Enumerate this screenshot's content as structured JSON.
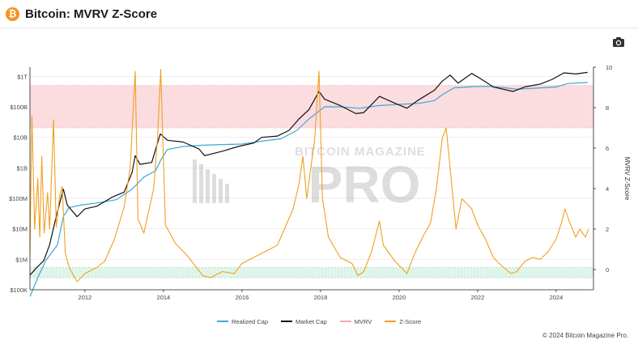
{
  "header": {
    "logo_glyph": "₿",
    "title": "Bitcoin: MVRV Z-Score"
  },
  "toolbar": {
    "camera_icon": "camera-icon"
  },
  "watermark": {
    "top": "BITCOIN MAGAZINE",
    "bottom": "PRO"
  },
  "legend": [
    {
      "label": "Realized Cap",
      "color": "#3ba7d6"
    },
    {
      "label": "Market Cap",
      "color": "#111111"
    },
    {
      "label": "MVRV",
      "color": "#f4a7b0"
    },
    {
      "label": "Z-Score",
      "color": "#f0a020"
    }
  ],
  "footer": {
    "copyright": "© 2024 Bitcoin Magazine Pro."
  },
  "chart_data": {
    "type": "line",
    "title": "Bitcoin: MVRV Z-Score",
    "x_range": [
      2010.6,
      2024.95
    ],
    "x_ticks": [
      "2012",
      "2014",
      "2016",
      "2018",
      "2020",
      "2022",
      "2024"
    ],
    "x_tick_values": [
      2012,
      2014,
      2016,
      2018,
      2020,
      2022,
      2024
    ],
    "y_left": {
      "scale": "log",
      "unit": "USD",
      "range": [
        100000,
        2000000000000
      ],
      "ticks": [
        "$100K",
        "$1M",
        "$10M",
        "$100M",
        "$1B",
        "$10B",
        "$100B",
        "$1T"
      ],
      "tick_values": [
        100000.0,
        1000000.0,
        10000000.0,
        100000000.0,
        1000000000.0,
        10000000000.0,
        100000000000.0,
        1000000000000.0
      ]
    },
    "y_right": {
      "label": "MVRV Z-Score",
      "range": [
        -1,
        10
      ],
      "ticks": [
        "0",
        "2",
        "4",
        "6",
        "8",
        "10"
      ],
      "tick_values": [
        0,
        2,
        4,
        6,
        8,
        10
      ]
    },
    "bands": [
      {
        "axis": "right",
        "from": 7,
        "to": 9.1,
        "color": "#fbdcdf",
        "meaning": "overvalued zone"
      },
      {
        "axis": "right",
        "from": -0.4,
        "to": 0.1,
        "color": "#dff5e9",
        "meaning": "undervalued zone"
      }
    ],
    "series": [
      {
        "name": "Realized Cap",
        "axis": "left",
        "color": "#3ba7d6",
        "points": [
          [
            2010.6,
            60000
          ],
          [
            2010.8,
            250000
          ],
          [
            2011.0,
            900000
          ],
          [
            2011.3,
            3000000
          ],
          [
            2011.45,
            25000000
          ],
          [
            2011.6,
            50000000
          ],
          [
            2011.9,
            60000000
          ],
          [
            2012.3,
            70000000
          ],
          [
            2012.8,
            90000000
          ],
          [
            2013.2,
            200000000
          ],
          [
            2013.5,
            500000000
          ],
          [
            2013.8,
            800000000
          ],
          [
            2013.95,
            2000000000
          ],
          [
            2014.1,
            4000000000
          ],
          [
            2014.5,
            5000000000
          ],
          [
            2015.0,
            5500000000
          ],
          [
            2015.5,
            5800000000
          ],
          [
            2016.0,
            6000000000
          ],
          [
            2016.5,
            7500000000
          ],
          [
            2017.0,
            9000000000
          ],
          [
            2017.4,
            17000000000
          ],
          [
            2017.7,
            40000000000
          ],
          [
            2017.95,
            70000000000
          ],
          [
            2018.1,
            100000000000
          ],
          [
            2018.5,
            100000000000
          ],
          [
            2019.0,
            90000000000
          ],
          [
            2019.5,
            110000000000
          ],
          [
            2020.0,
            120000000000
          ],
          [
            2020.5,
            130000000000
          ],
          [
            2020.9,
            160000000000
          ],
          [
            2021.1,
            250000000000
          ],
          [
            2021.4,
            420000000000
          ],
          [
            2021.9,
            460000000000
          ],
          [
            2022.3,
            470000000000
          ],
          [
            2022.7,
            420000000000
          ],
          [
            2023.0,
            380000000000
          ],
          [
            2023.5,
            410000000000
          ],
          [
            2024.0,
            450000000000
          ],
          [
            2024.3,
            580000000000
          ],
          [
            2024.8,
            630000000000
          ]
        ]
      },
      {
        "name": "Market Cap",
        "axis": "left",
        "color": "#111111",
        "points": [
          [
            2010.6,
            300000
          ],
          [
            2010.75,
            500000
          ],
          [
            2010.95,
            900000
          ],
          [
            2011.1,
            3000000
          ],
          [
            2011.25,
            20000000
          ],
          [
            2011.45,
            200000000
          ],
          [
            2011.55,
            60000000
          ],
          [
            2011.8,
            25000000
          ],
          [
            2012.0,
            45000000
          ],
          [
            2012.3,
            55000000
          ],
          [
            2012.7,
            110000000
          ],
          [
            2013.0,
            160000000
          ],
          [
            2013.2,
            700000000
          ],
          [
            2013.28,
            2500000000
          ],
          [
            2013.4,
            1300000000
          ],
          [
            2013.7,
            1500000000
          ],
          [
            2013.92,
            13000000000
          ],
          [
            2014.1,
            8000000000
          ],
          [
            2014.5,
            7000000000
          ],
          [
            2014.9,
            4200000000
          ],
          [
            2015.05,
            2500000000
          ],
          [
            2015.5,
            3500000000
          ],
          [
            2015.9,
            5000000000
          ],
          [
            2016.3,
            6500000000
          ],
          [
            2016.5,
            10000000000
          ],
          [
            2016.9,
            11000000000
          ],
          [
            2017.2,
            17000000000
          ],
          [
            2017.45,
            40000000000
          ],
          [
            2017.7,
            80000000000
          ],
          [
            2017.96,
            320000000000
          ],
          [
            2018.1,
            180000000000
          ],
          [
            2018.5,
            110000000000
          ],
          [
            2018.9,
            60000000000
          ],
          [
            2019.1,
            65000000000
          ],
          [
            2019.5,
            220000000000
          ],
          [
            2019.9,
            130000000000
          ],
          [
            2020.2,
            90000000000
          ],
          [
            2020.5,
            170000000000
          ],
          [
            2020.9,
            350000000000
          ],
          [
            2021.1,
            700000000000
          ],
          [
            2021.3,
            1100000000000
          ],
          [
            2021.5,
            600000000000
          ],
          [
            2021.85,
            1250000000000
          ],
          [
            2022.1,
            800000000000
          ],
          [
            2022.4,
            450000000000
          ],
          [
            2022.9,
            320000000000
          ],
          [
            2023.2,
            450000000000
          ],
          [
            2023.6,
            560000000000
          ],
          [
            2023.9,
            800000000000
          ],
          [
            2024.2,
            1300000000000
          ],
          [
            2024.5,
            1200000000000
          ],
          [
            2024.8,
            1350000000000
          ]
        ]
      },
      {
        "name": "Z-Score",
        "axis": "right",
        "color": "#f0a020",
        "points": [
          [
            2010.6,
            0.8
          ],
          [
            2010.65,
            7.6
          ],
          [
            2010.72,
            2.0
          ],
          [
            2010.8,
            4.5
          ],
          [
            2010.85,
            1.6
          ],
          [
            2010.9,
            5.6
          ],
          [
            2010.96,
            1.8
          ],
          [
            2011.05,
            3.8
          ],
          [
            2011.1,
            2.0
          ],
          [
            2011.2,
            7.4
          ],
          [
            2011.27,
            2.1
          ],
          [
            2011.35,
            3.6
          ],
          [
            2011.42,
            4.1
          ],
          [
            2011.5,
            0.8
          ],
          [
            2011.6,
            0.1
          ],
          [
            2011.8,
            -0.6
          ],
          [
            2012.0,
            -0.2
          ],
          [
            2012.3,
            0.1
          ],
          [
            2012.5,
            0.4
          ],
          [
            2012.75,
            1.5
          ],
          [
            2013.0,
            3.1
          ],
          [
            2013.15,
            5.0
          ],
          [
            2013.28,
            9.8
          ],
          [
            2013.35,
            2.5
          ],
          [
            2013.5,
            1.8
          ],
          [
            2013.75,
            4.0
          ],
          [
            2013.85,
            6.5
          ],
          [
            2013.93,
            9.9
          ],
          [
            2014.05,
            2.2
          ],
          [
            2014.3,
            1.3
          ],
          [
            2014.6,
            0.7
          ],
          [
            2014.8,
            0.2
          ],
          [
            2015.0,
            -0.3
          ],
          [
            2015.2,
            -0.4
          ],
          [
            2015.5,
            -0.1
          ],
          [
            2015.8,
            -0.2
          ],
          [
            2016.0,
            0.3
          ],
          [
            2016.3,
            0.6
          ],
          [
            2016.6,
            0.9
          ],
          [
            2016.9,
            1.2
          ],
          [
            2017.1,
            2.1
          ],
          [
            2017.3,
            3.0
          ],
          [
            2017.45,
            4.2
          ],
          [
            2017.55,
            5.6
          ],
          [
            2017.65,
            3.5
          ],
          [
            2017.75,
            5.0
          ],
          [
            2017.85,
            6.4
          ],
          [
            2017.96,
            9.8
          ],
          [
            2018.05,
            3.5
          ],
          [
            2018.2,
            1.6
          ],
          [
            2018.5,
            0.6
          ],
          [
            2018.8,
            0.3
          ],
          [
            2018.95,
            -0.3
          ],
          [
            2019.1,
            -0.1
          ],
          [
            2019.3,
            0.9
          ],
          [
            2019.5,
            2.4
          ],
          [
            2019.6,
            1.2
          ],
          [
            2019.9,
            0.4
          ],
          [
            2020.2,
            -0.2
          ],
          [
            2020.4,
            0.8
          ],
          [
            2020.6,
            1.6
          ],
          [
            2020.8,
            2.3
          ],
          [
            2020.95,
            4.0
          ],
          [
            2021.1,
            6.5
          ],
          [
            2021.2,
            7.0
          ],
          [
            2021.3,
            5.0
          ],
          [
            2021.45,
            2.0
          ],
          [
            2021.6,
            3.5
          ],
          [
            2021.85,
            3.0
          ],
          [
            2022.0,
            2.2
          ],
          [
            2022.2,
            1.5
          ],
          [
            2022.4,
            0.6
          ],
          [
            2022.6,
            0.2
          ],
          [
            2022.85,
            -0.2
          ],
          [
            2023.0,
            -0.1
          ],
          [
            2023.2,
            0.4
          ],
          [
            2023.4,
            0.6
          ],
          [
            2023.6,
            0.5
          ],
          [
            2023.8,
            0.9
          ],
          [
            2024.0,
            1.5
          ],
          [
            2024.15,
            2.4
          ],
          [
            2024.22,
            3.0
          ],
          [
            2024.35,
            2.3
          ],
          [
            2024.5,
            1.6
          ],
          [
            2024.6,
            2.0
          ],
          [
            2024.75,
            1.6
          ],
          [
            2024.82,
            2.0
          ]
        ]
      }
    ]
  }
}
